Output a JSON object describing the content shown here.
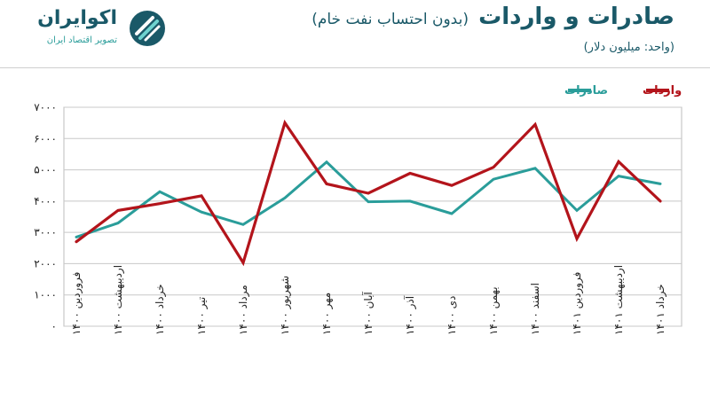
{
  "header": {
    "title_main": "صادرات و واردات",
    "title_sub": "(بدون احتساب نفت خام)",
    "unit": "(واحد: میلیون دلار)"
  },
  "logo": {
    "name": "اکوایران",
    "tagline": "تصویر اقتصاد ایران"
  },
  "colors": {
    "exports": "#2a9d9a",
    "imports": "#b3141b",
    "grid": "#c8c8c8",
    "brand": "#1a5968"
  },
  "chart_data": {
    "type": "line",
    "title": "صادرات و واردات",
    "ylim": [
      0,
      7000
    ],
    "yticks": [
      "۰",
      "۱۰۰۰",
      "۲۰۰۰",
      "۳۰۰۰",
      "۴۰۰۰",
      "۵۰۰۰",
      "۶۰۰۰",
      "۷۰۰۰"
    ],
    "grid": true,
    "legend_position": "top-right",
    "categories": [
      "فروردین ۱۴۰۰",
      "اردیبهشت ۱۴۰۰",
      "خرداد ۱۴۰۰",
      "تیر ۱۴۰۰",
      "مرداد ۱۴۰۰",
      "شهریور ۱۴۰۰",
      "مهر ۱۴۰۰",
      "آبان ۱۴۰۰",
      "آذر ۱۴۰۰",
      "دی ۱۴۰۰",
      "بهمن ۱۴۰۰",
      "اسفند ۱۴۰۰",
      "فروردین ۱۴۰۱",
      "اردیبهشت ۱۴۰۱",
      "خرداد ۱۴۰۱"
    ],
    "series": [
      {
        "name": "صادرات",
        "color": "#2a9d9a",
        "values": [
          2850,
          3300,
          4300,
          3650,
          3250,
          4100,
          5250,
          3980,
          4000,
          3600,
          4700,
          5050,
          3700,
          4800,
          4550
        ]
      },
      {
        "name": "واردات",
        "color": "#b3141b",
        "values": [
          2700,
          3700,
          3920,
          4170,
          2030,
          6500,
          4550,
          4250,
          4890,
          4500,
          5080,
          6450,
          2800,
          5260,
          4000
        ]
      }
    ]
  }
}
